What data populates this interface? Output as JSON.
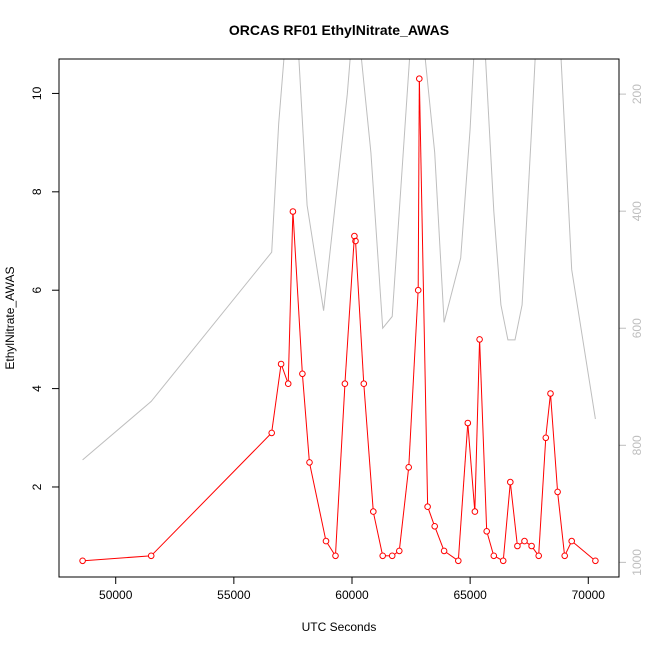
{
  "chart_data": {
    "type": "line",
    "title": "ORCAS RF01 EthylNitrate_AWAS",
    "xlabel": "UTC Seconds",
    "ylabel": "EthylNitrate_AWAS",
    "xlim": [
      47600,
      71300
    ],
    "ylim": [
      0.17,
      10.7
    ],
    "x_ticks": [
      50000,
      55000,
      60000,
      65000,
      70000
    ],
    "y_ticks": [
      2,
      4,
      6,
      8,
      10
    ],
    "y2lim": [
      1025,
      140
    ],
    "y2_ticks": [
      200,
      400,
      600,
      800,
      1000
    ],
    "colors": {
      "primary": "#ff0000",
      "secondary": "#bebebe",
      "frame": "#000000"
    },
    "series": [
      {
        "role": "primary",
        "marker": "open-circle",
        "points": [
          [
            48600,
            0.5
          ],
          [
            51500,
            0.6
          ],
          [
            56600,
            3.1
          ],
          [
            57000,
            4.5
          ],
          [
            57300,
            4.1
          ],
          [
            57500,
            7.6
          ],
          [
            57900,
            4.3
          ],
          [
            58200,
            2.5
          ],
          [
            58900,
            0.9
          ],
          [
            59300,
            0.6
          ],
          [
            59700,
            4.1
          ],
          [
            60100,
            7.1
          ],
          [
            60150,
            7.0
          ],
          [
            60500,
            4.1
          ],
          [
            60900,
            1.5
          ],
          [
            61300,
            0.6
          ],
          [
            61700,
            0.6
          ],
          [
            62000,
            0.7
          ],
          [
            62400,
            2.4
          ],
          [
            62800,
            6.0
          ],
          [
            62850,
            10.3
          ],
          [
            63200,
            1.6
          ],
          [
            63500,
            1.2
          ],
          [
            63900,
            0.7
          ],
          [
            64500,
            0.5
          ],
          [
            64900,
            3.3
          ],
          [
            65200,
            1.5
          ],
          [
            65400,
            5.0
          ],
          [
            65700,
            1.1
          ],
          [
            66000,
            0.6
          ],
          [
            66400,
            0.5
          ],
          [
            66700,
            2.1
          ],
          [
            67000,
            0.8
          ],
          [
            67300,
            0.9
          ],
          [
            67600,
            0.8
          ],
          [
            67900,
            0.6
          ],
          [
            68200,
            3.0
          ],
          [
            68400,
            3.9
          ],
          [
            68700,
            1.9
          ],
          [
            69000,
            0.6
          ],
          [
            69300,
            0.9
          ],
          [
            70300,
            0.5
          ]
        ]
      },
      {
        "role": "secondary",
        "axis": "right",
        "points": [
          [
            48600,
            825
          ],
          [
            51500,
            725
          ],
          [
            56600,
            470
          ],
          [
            56900,
            250
          ],
          [
            57200,
            100
          ],
          [
            57700,
            100
          ],
          [
            58100,
            390
          ],
          [
            58800,
            570
          ],
          [
            59800,
            200
          ],
          [
            60000,
            100
          ],
          [
            60300,
            100
          ],
          [
            60800,
            300
          ],
          [
            61300,
            600
          ],
          [
            61700,
            580
          ],
          [
            62500,
            100
          ],
          [
            63000,
            100
          ],
          [
            63500,
            300
          ],
          [
            63900,
            590
          ],
          [
            64600,
            480
          ],
          [
            65000,
            260
          ],
          [
            65200,
            100
          ],
          [
            65600,
            100
          ],
          [
            66000,
            400
          ],
          [
            66300,
            560
          ],
          [
            66600,
            620
          ],
          [
            66900,
            620
          ],
          [
            67200,
            560
          ],
          [
            67600,
            260
          ],
          [
            67800,
            100
          ],
          [
            68800,
            100
          ],
          [
            69300,
            500
          ],
          [
            70300,
            755
          ]
        ]
      }
    ]
  }
}
